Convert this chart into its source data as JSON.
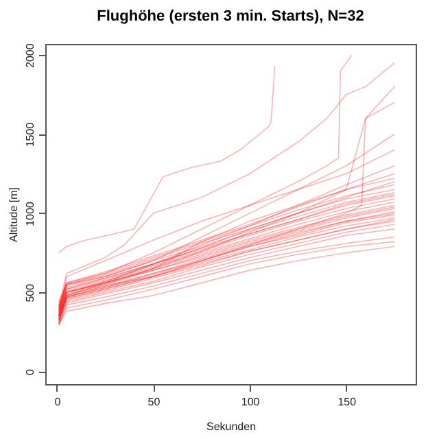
{
  "chart_data": {
    "type": "line",
    "title": "Flughöhe (ersten 3 min. Starts), N=32",
    "xlabel": "Sekunden",
    "ylabel": "Altitude [m]",
    "x": [
      1,
      5,
      25,
      50,
      75,
      100,
      125,
      150,
      175
    ],
    "xlim": [
      -6,
      186
    ],
    "xticks": [
      0,
      50,
      100,
      150
    ],
    "ylim": [
      -80,
      2070
    ],
    "yticks": [
      0,
      500,
      1000,
      1500,
      2000
    ],
    "grid": false,
    "series": [
      {
        "color": "#ff0000",
        "x": [
          1,
          5,
          15,
          30,
          40,
          55,
          70,
          85,
          95,
          105,
          110,
          111,
          113
        ],
        "values": [
          750,
          790,
          830,
          870,
          900,
          1230,
          1290,
          1330,
          1400,
          1500,
          1550,
          1580,
          1930
        ]
      },
      {
        "color": "#ff0000",
        "x": [
          1,
          5,
          25,
          50,
          75,
          100,
          125,
          140,
          146,
          147,
          150,
          153
        ],
        "values": [
          350,
          600,
          700,
          830,
          950,
          1050,
          1200,
          1300,
          1350,
          1900,
          1950,
          2000
        ]
      },
      {
        "color": "#ff0000",
        "x": [
          1,
          5,
          25,
          35,
          50,
          75,
          100,
          125,
          140,
          150,
          160,
          175
        ],
        "values": [
          400,
          620,
          720,
          800,
          1000,
          1100,
          1250,
          1450,
          1600,
          1750,
          1800,
          1950
        ]
      },
      {
        "color": "#ff0000",
        "values": [
          350,
          550,
          600,
          700,
          850,
          1000,
          1150,
          1300,
          1500
        ]
      },
      {
        "color": "#ff0000",
        "x": [
          1,
          5,
          25,
          50,
          75,
          100,
          125,
          150,
          160,
          175
        ],
        "values": [
          320,
          500,
          560,
          650,
          820,
          950,
          1050,
          1150,
          1600,
          1800
        ]
      },
      {
        "color": "#ff0000",
        "x": [
          1,
          5,
          25,
          50,
          75,
          100,
          125,
          150,
          158,
          160,
          175
        ],
        "values": [
          330,
          470,
          540,
          600,
          700,
          800,
          900,
          1000,
          1050,
          1600,
          1700
        ]
      },
      {
        "color": "#ff0000",
        "values": [
          380,
          550,
          620,
          750,
          900,
          1050,
          1150,
          1250,
          1400
        ]
      },
      {
        "color": "#ff0000",
        "values": [
          300,
          480,
          560,
          680,
          780,
          900,
          1000,
          1150,
          1250
        ]
      },
      {
        "color": "#ff0000",
        "values": [
          290,
          400,
          450,
          520,
          600,
          680,
          740,
          790,
          820
        ]
      },
      {
        "color": "#ff0000",
        "values": [
          300,
          420,
          470,
          540,
          620,
          700,
          760,
          810,
          850
        ]
      },
      {
        "color": "#ff0000",
        "values": [
          310,
          430,
          490,
          560,
          640,
          720,
          790,
          860,
          900
        ]
      },
      {
        "color": "#ff0000",
        "values": [
          320,
          440,
          500,
          570,
          660,
          740,
          810,
          880,
          930
        ]
      },
      {
        "color": "#ff0000",
        "values": [
          330,
          450,
          510,
          590,
          670,
          760,
          830,
          900,
          950
        ]
      },
      {
        "color": "#ff0000",
        "values": [
          340,
          460,
          520,
          600,
          690,
          770,
          850,
          920,
          970
        ]
      },
      {
        "color": "#ff0000",
        "values": [
          350,
          470,
          530,
          610,
          700,
          790,
          860,
          940,
          990
        ]
      },
      {
        "color": "#ff0000",
        "values": [
          360,
          480,
          540,
          620,
          710,
          800,
          880,
          950,
          1010
        ]
      },
      {
        "color": "#ff0000",
        "values": [
          370,
          490,
          550,
          640,
          720,
          810,
          890,
          970,
          1030
        ]
      },
      {
        "color": "#ff0000",
        "values": [
          380,
          500,
          560,
          650,
          740,
          830,
          910,
          990,
          1050
        ]
      },
      {
        "color": "#ff0000",
        "values": [
          390,
          510,
          570,
          660,
          750,
          840,
          930,
          1010,
          1070
        ]
      },
      {
        "color": "#ff0000",
        "values": [
          400,
          520,
          580,
          670,
          760,
          860,
          950,
          1030,
          1090
        ]
      },
      {
        "color": "#ff0000",
        "values": [
          410,
          530,
          590,
          680,
          780,
          870,
          960,
          1050,
          1110
        ]
      },
      {
        "color": "#ff0000",
        "values": [
          420,
          540,
          600,
          700,
          790,
          890,
          980,
          1070,
          1130
        ]
      },
      {
        "color": "#ff0000",
        "values": [
          430,
          550,
          610,
          710,
          810,
          900,
          1000,
          1090,
          1150
        ]
      },
      {
        "color": "#ff0000",
        "values": [
          440,
          560,
          620,
          720,
          820,
          920,
          1020,
          1110,
          1180
        ]
      },
      {
        "color": "#ff0000",
        "values": [
          300,
          380,
          430,
          480,
          560,
          640,
          700,
          750,
          790
        ]
      },
      {
        "color": "#ff0000",
        "values": [
          320,
          460,
          520,
          600,
          680,
          760,
          830,
          900,
          960
        ]
      },
      {
        "color": "#ff0000",
        "values": [
          350,
          500,
          560,
          640,
          730,
          820,
          900,
          980,
          1040
        ]
      },
      {
        "color": "#ff0000",
        "values": [
          330,
          470,
          530,
          620,
          700,
          790,
          870,
          950,
          1000
        ]
      },
      {
        "color": "#ff0000",
        "values": [
          370,
          520,
          590,
          680,
          770,
          870,
          960,
          1060,
          1120
        ]
      },
      {
        "color": "#ff0000",
        "values": [
          410,
          560,
          630,
          730,
          830,
          930,
          1040,
          1150,
          1220
        ]
      },
      {
        "color": "#ff0000",
        "values": [
          360,
          480,
          550,
          650,
          760,
          880,
          1000,
          1100,
          1200
        ]
      },
      {
        "color": "#ff0000",
        "values": [
          390,
          500,
          570,
          680,
          800,
          920,
          1050,
          1180,
          1300
        ]
      }
    ]
  }
}
